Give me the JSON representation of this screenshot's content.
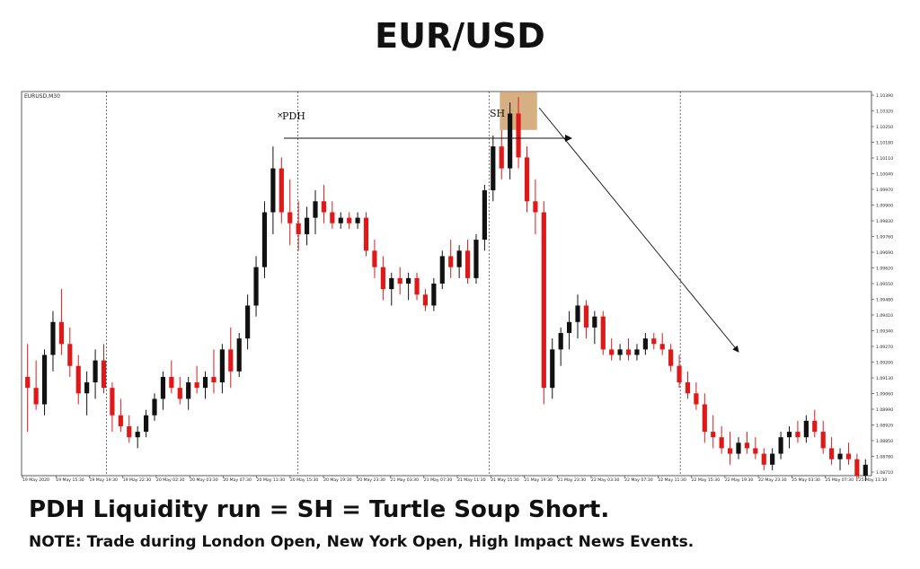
{
  "title": "EUR/USD",
  "headline": "PDH Liquidity run = SH = Turtle Soup Short.",
  "note": "NOTE: Trade during London Open, New York Open, High Impact News Events.",
  "chart_data": {
    "type": "candlestick",
    "symbol_label": "EURUSD,M30",
    "colors": {
      "up": "#111111",
      "down": "#e01818",
      "grid": "#333333",
      "zone": "#c8965a"
    },
    "ylim": [
      1.0972,
      1.1042
    ],
    "y_ticks": [
      "1.10390",
      "1.10320",
      "1.10250",
      "1.10180",
      "1.10110",
      "1.10040",
      "1.09970",
      "1.09900",
      "1.09830",
      "1.09760",
      "1.09690",
      "1.09620",
      "1.09550",
      "1.09480",
      "1.09410",
      "1.09340",
      "1.09270",
      "1.09200",
      "1.09130",
      "1.09060",
      "1.08990",
      "1.08920",
      "1.08850",
      "1.08780",
      "1.08710"
    ],
    "x_ticks": [
      "19 May 2020",
      "19 May 15:30",
      "19 May 19:30",
      "19 May 22:30",
      "20 May 02:30",
      "20 May 03:30",
      "20 May 07:30",
      "20 May 11:30",
      "20 May 15:30",
      "20 May 19:30",
      "20 May 23:30",
      "21 May 03:30",
      "21 May 07:30",
      "21 May 11:30",
      "21 May 15:30",
      "21 May 19:30",
      "21 May 23:30",
      "22 May 03:30",
      "22 May 07:30",
      "22 May 11:30",
      "22 May 15:30",
      "22 May 19:30",
      "22 May 23:30",
      "25 May 03:30",
      "25 May 07:30",
      "25 May 11:30"
    ],
    "session_separators": [
      4,
      13,
      22,
      31
    ],
    "annotations": {
      "pdh": "PDH",
      "sh": "SH"
    },
    "pdh_level": 1.10335,
    "candles": [
      [
        1.099,
        1.0996,
        1.098,
        1.0988
      ],
      [
        1.0988,
        1.0993,
        1.0984,
        1.0985
      ],
      [
        1.0985,
        1.0995,
        1.0983,
        1.0994
      ],
      [
        1.0994,
        1.1002,
        1.0991,
        1.1
      ],
      [
        1.1,
        1.1006,
        1.0994,
        1.0996
      ],
      [
        1.0996,
        1.0999,
        1.099,
        1.0992
      ],
      [
        1.0992,
        1.0994,
        1.0985,
        1.0987
      ],
      [
        1.0987,
        1.0991,
        1.0983,
        1.0989
      ],
      [
        1.0989,
        1.0995,
        1.0986,
        1.0993
      ],
      [
        1.0993,
        1.0996,
        1.0987,
        1.0988
      ],
      [
        1.0988,
        1.0989,
        1.098,
        1.0983
      ],
      [
        1.0983,
        1.0986,
        1.098,
        1.0981
      ],
      [
        1.0981,
        1.0983,
        1.0978,
        1.0979
      ],
      [
        1.0979,
        1.0981,
        1.0977,
        1.098
      ],
      [
        1.098,
        1.0984,
        1.0979,
        1.0983
      ],
      [
        1.0983,
        1.0987,
        1.0982,
        1.0986
      ],
      [
        1.0986,
        1.0991,
        1.0984,
        1.099
      ],
      [
        1.099,
        1.0993,
        1.0987,
        1.0988
      ],
      [
        1.0988,
        1.099,
        1.0985,
        1.0986
      ],
      [
        1.0986,
        1.099,
        1.0984,
        1.0989
      ],
      [
        1.0989,
        1.0992,
        1.0987,
        1.0988
      ],
      [
        1.0988,
        1.0991,
        1.0986,
        1.099
      ],
      [
        1.099,
        1.0995,
        1.0987,
        1.0989
      ],
      [
        1.0989,
        1.0996,
        1.0987,
        1.0995
      ],
      [
        1.0995,
        1.0999,
        1.0988,
        1.0991
      ],
      [
        1.0991,
        1.0998,
        1.099,
        1.0997
      ],
      [
        1.0997,
        1.1005,
        1.0995,
        1.1003
      ],
      [
        1.1003,
        1.1012,
        1.1001,
        1.101
      ],
      [
        1.101,
        1.1022,
        1.1008,
        1.102
      ],
      [
        1.102,
        1.1032,
        1.1016,
        1.1028
      ],
      [
        1.1028,
        1.103,
        1.1018,
        1.102
      ],
      [
        1.102,
        1.1026,
        1.1014,
        1.1018
      ],
      [
        1.1018,
        1.1022,
        1.1013,
        1.1016
      ],
      [
        1.1016,
        1.1021,
        1.1014,
        1.1019
      ],
      [
        1.1019,
        1.1024,
        1.1016,
        1.1022
      ],
      [
        1.1022,
        1.1025,
        1.1018,
        1.102
      ],
      [
        1.102,
        1.1022,
        1.1017,
        1.1018
      ],
      [
        1.1018,
        1.102,
        1.1017,
        1.1019
      ],
      [
        1.1019,
        1.102,
        1.1017,
        1.1018
      ],
      [
        1.1018,
        1.102,
        1.1017,
        1.1019
      ],
      [
        1.1019,
        1.102,
        1.1012,
        1.1013
      ],
      [
        1.1013,
        1.1015,
        1.1008,
        1.101
      ],
      [
        1.101,
        1.1012,
        1.1004,
        1.1006
      ],
      [
        1.1006,
        1.1009,
        1.1003,
        1.1008
      ],
      [
        1.1008,
        1.101,
        1.1005,
        1.1007
      ],
      [
        1.1007,
        1.1009,
        1.1004,
        1.1008
      ],
      [
        1.1008,
        1.1009,
        1.1004,
        1.1005
      ],
      [
        1.1005,
        1.1006,
        1.1002,
        1.1003
      ],
      [
        1.1003,
        1.1008,
        1.1002,
        1.1007
      ],
      [
        1.1007,
        1.1013,
        1.1006,
        1.1012
      ],
      [
        1.1012,
        1.1015,
        1.1008,
        1.101
      ],
      [
        1.101,
        1.1014,
        1.1008,
        1.1013
      ],
      [
        1.1013,
        1.1015,
        1.1007,
        1.1008
      ],
      [
        1.1008,
        1.1016,
        1.1007,
        1.1015
      ],
      [
        1.1015,
        1.1025,
        1.1013,
        1.1024
      ],
      [
        1.1024,
        1.1034,
        1.1022,
        1.1032
      ],
      [
        1.1032,
        1.1035,
        1.1026,
        1.1028
      ],
      [
        1.1028,
        1.104,
        1.1026,
        1.1038
      ],
      [
        1.1038,
        1.1041,
        1.1028,
        1.103
      ],
      [
        1.103,
        1.1032,
        1.102,
        1.1022
      ],
      [
        1.1022,
        1.1026,
        1.1016,
        1.102
      ],
      [
        1.102,
        1.1022,
        1.0985,
        1.0988
      ],
      [
        1.0988,
        1.0997,
        1.0986,
        1.0995
      ],
      [
        1.0995,
        1.0999,
        1.0992,
        1.0998
      ],
      [
        1.0998,
        1.1002,
        1.0995,
        1.1
      ],
      [
        1.1,
        1.1005,
        1.0997,
        1.1003
      ],
      [
        1.1003,
        1.1004,
        1.0997,
        1.0999
      ],
      [
        1.0999,
        1.1002,
        1.0996,
        1.1001
      ],
      [
        1.1001,
        1.1002,
        1.0994,
        1.0995
      ],
      [
        1.0995,
        1.0997,
        1.0993,
        1.0994
      ],
      [
        1.0994,
        1.0996,
        1.0993,
        1.0995
      ],
      [
        1.0995,
        1.0997,
        1.0993,
        1.0994
      ],
      [
        1.0994,
        1.0996,
        1.0993,
        1.0995
      ],
      [
        1.0995,
        1.0998,
        1.0994,
        1.0997
      ],
      [
        1.0997,
        1.0998,
        1.0995,
        1.0996
      ],
      [
        1.0996,
        1.0998,
        1.0994,
        1.0995
      ],
      [
        1.0995,
        1.0996,
        1.0991,
        1.0992
      ],
      [
        1.0992,
        1.0994,
        1.0988,
        1.0989
      ],
      [
        1.0989,
        1.0991,
        1.0986,
        1.0987
      ],
      [
        1.0987,
        1.0989,
        1.0984,
        1.0985
      ],
      [
        1.0985,
        1.0987,
        1.0978,
        1.098
      ],
      [
        1.098,
        1.0983,
        1.0977,
        1.0979
      ],
      [
        1.0979,
        1.0981,
        1.0976,
        1.0977
      ],
      [
        1.0977,
        1.098,
        1.0974,
        1.0976
      ],
      [
        1.0976,
        1.0979,
        1.0975,
        1.0978
      ],
      [
        1.0978,
        1.098,
        1.0976,
        1.0977
      ],
      [
        1.0977,
        1.0979,
        1.0975,
        1.0976
      ],
      [
        1.0976,
        1.0977,
        1.0973,
        1.0974
      ],
      [
        1.0974,
        1.0977,
        1.0973,
        1.0976
      ],
      [
        1.0976,
        1.098,
        1.0975,
        1.0979
      ],
      [
        1.0979,
        1.0981,
        1.0977,
        1.098
      ],
      [
        1.098,
        1.0982,
        1.0978,
        1.0979
      ],
      [
        1.0979,
        1.0983,
        1.0978,
        1.0982
      ],
      [
        1.0982,
        1.0984,
        1.0979,
        1.098
      ],
      [
        1.098,
        1.0982,
        1.0976,
        1.0977
      ],
      [
        1.0977,
        1.0979,
        1.0974,
        1.0975
      ],
      [
        1.0975,
        1.0977,
        1.0973,
        1.0976
      ],
      [
        1.0976,
        1.0978,
        1.0974,
        1.0975
      ],
      [
        1.0975,
        1.0976,
        1.0971,
        1.0972
      ],
      [
        1.0972,
        1.0975,
        1.0971,
        1.0974
      ]
    ]
  }
}
